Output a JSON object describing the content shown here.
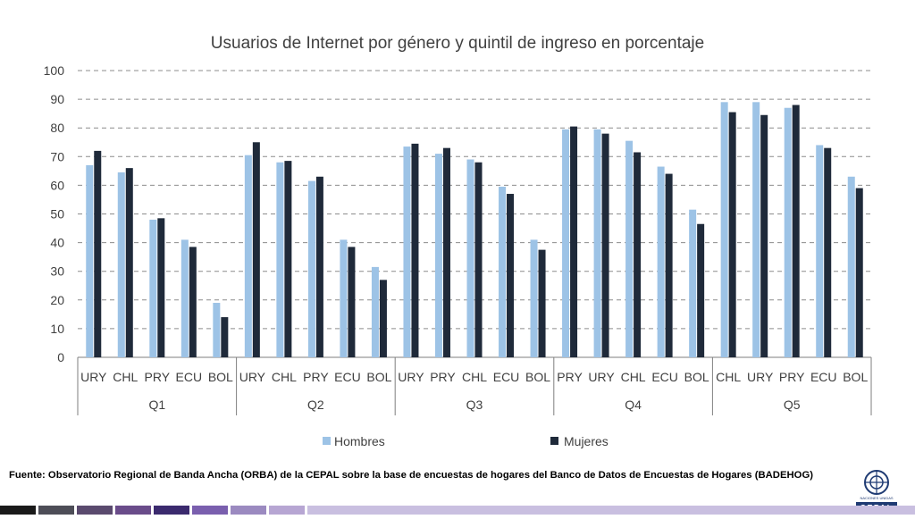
{
  "chart_data": {
    "type": "bar",
    "title": "Usuarios de Internet por género y quintil de ingreso en porcentaje",
    "xlabel": "",
    "ylabel": "",
    "ylim": [
      0,
      100
    ],
    "yticks": [
      0,
      10,
      20,
      30,
      40,
      50,
      60,
      70,
      80,
      90,
      100
    ],
    "grid": true,
    "legend_position": "bottom",
    "groups": [
      {
        "label": "Q1",
        "categories": [
          "URY",
          "CHL",
          "PRY",
          "ECU",
          "BOL"
        ]
      },
      {
        "label": "Q2",
        "categories": [
          "URY",
          "CHL",
          "PRY",
          "ECU",
          "BOL"
        ]
      },
      {
        "label": "Q3",
        "categories": [
          "URY",
          "PRY",
          "CHL",
          "ECU",
          "BOL"
        ]
      },
      {
        "label": "Q4",
        "categories": [
          "PRY",
          "URY",
          "CHL",
          "ECU",
          "BOL"
        ]
      },
      {
        "label": "Q5",
        "categories": [
          "CHL",
          "URY",
          "PRY",
          "ECU",
          "BOL"
        ]
      }
    ],
    "series": [
      {
        "name": "Hombres",
        "color": "#9dc3e6",
        "values": [
          67,
          64.5,
          48,
          41,
          19,
          70.5,
          68,
          61.5,
          41,
          31.5,
          73.5,
          71,
          69,
          59.5,
          41,
          79.5,
          79.5,
          75.5,
          66.5,
          51.5,
          89,
          89,
          87,
          74,
          63
        ]
      },
      {
        "name": "Mujeres",
        "color": "#1f2a3a",
        "values": [
          72,
          66,
          48.5,
          38.5,
          14,
          75,
          68.5,
          63,
          38.5,
          27,
          74.5,
          73,
          68,
          57,
          37.5,
          80.5,
          78,
          71.5,
          64,
          46.5,
          85.5,
          84.5,
          88,
          73,
          59
        ]
      }
    ]
  },
  "source_note": "Fuente: Observatorio Regional de Banda Ancha (ORBA) de la CEPAL sobre la base de encuestas de hogares del Banco de Datos de Encuestas de Hogares (BADEHOG)",
  "logo": {
    "text": "CEPAL",
    "subtext": "NACIONES UNIDAS"
  },
  "footer_colors": [
    "#1a1a1a",
    "#4d4d57",
    "#5a4a6e",
    "#6a4c8a",
    "#3b2a6e",
    "#7a5fae",
    "#9b8ac0",
    "#b7a6d3",
    "#c9bfe0"
  ]
}
